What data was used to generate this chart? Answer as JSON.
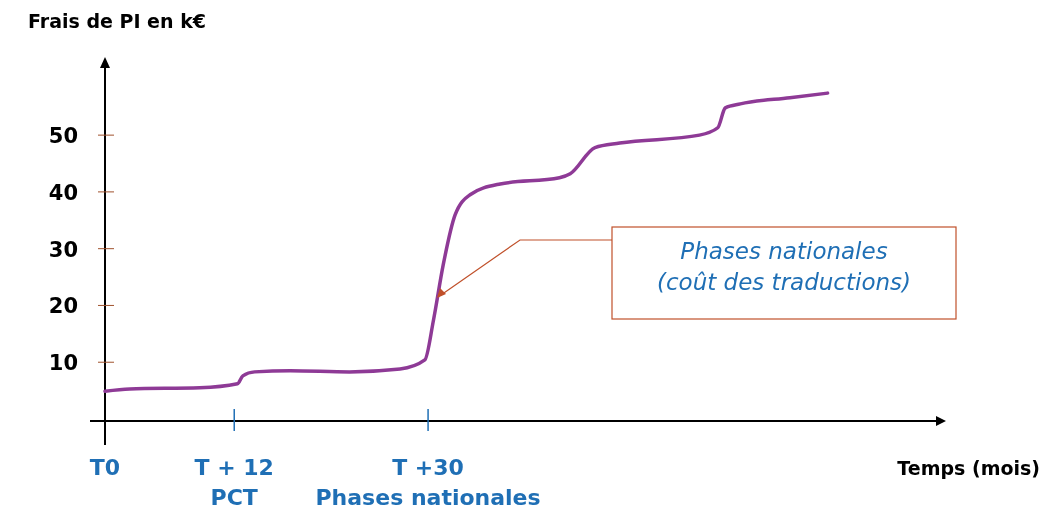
{
  "chart_data": {
    "type": "line",
    "ylabel": "Frais de PI en k€",
    "xlabel": "Temps (mois)",
    "x": [
      0,
      2.3,
      8.8,
      12.3,
      12.8,
      13.9,
      17.2,
      22.7,
      27.4,
      29.7,
      30.5,
      31.4,
      32.5,
      33.9,
      36.7,
      42.2,
      43.2,
      45.5,
      47.8,
      55.2,
      56.9,
      57.6,
      59.0,
      63.6,
      67.1
    ],
    "series": [
      {
        "color": "#8e3a96",
        "values": [
          4.9,
          5.3,
          5.5,
          6.2,
          7.6,
          8.3,
          8.5,
          8.3,
          8.8,
          10.4,
          17.4,
          27.1,
          35.9,
          39.5,
          41.4,
          42.5,
          43.2,
          47.8,
          48.6,
          50.0,
          51.3,
          54.8,
          55.5,
          56.6,
          57.4
        ]
      }
    ],
    "xlim": [
      0,
      78
    ],
    "ylim": [
      0,
      62
    ],
    "xticks": [
      {
        "value": 0,
        "label": "T0"
      },
      {
        "value": 12,
        "label": "T + 12\nPCT"
      },
      {
        "value": 30,
        "label": "T +30\nPhases nationales"
      }
    ],
    "yticks": [
      10,
      20,
      30,
      40,
      50
    ],
    "annotations": [
      "Phases nationales\n(coût des traductions)"
    ],
    "grid": false,
    "marker": "none",
    "line_style": "solid"
  }
}
